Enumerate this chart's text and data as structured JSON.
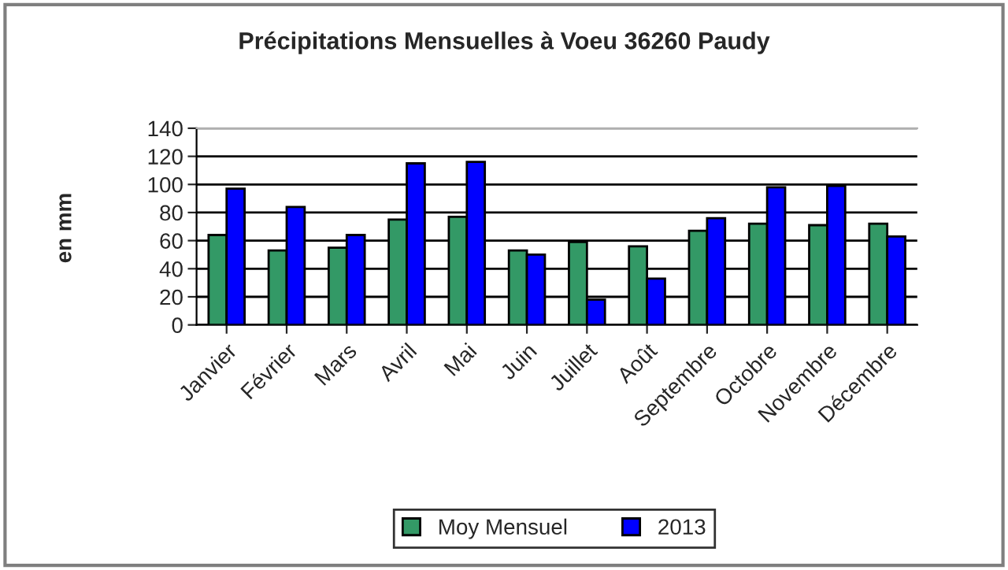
{
  "chart_data": {
    "type": "bar",
    "title": "Précipitations Mensuelles à Voeu 36260 Paudy",
    "ylabel": "en mm",
    "categories": [
      "Janvier",
      "Février",
      "Mars",
      "Avril",
      "Mai",
      "Juin",
      "Juillet",
      "Août",
      "Septembre",
      "Octobre",
      "Novembre",
      "Décembre"
    ],
    "series": [
      {
        "name": "Moy Mensuel",
        "color": "#339966",
        "values": [
          64,
          53,
          55,
          75,
          77,
          53,
          59,
          56,
          67,
          72,
          71,
          72
        ]
      },
      {
        "name": "2013",
        "color": "#0000ff",
        "values": [
          97,
          84,
          64,
          115,
          116,
          50,
          18,
          33,
          76,
          98,
          99,
          63
        ]
      }
    ],
    "ylim": [
      0,
      140
    ],
    "yticks": [
      0,
      20,
      40,
      60,
      80,
      100,
      120,
      140
    ],
    "grid": "y",
    "legend": "bottom"
  }
}
